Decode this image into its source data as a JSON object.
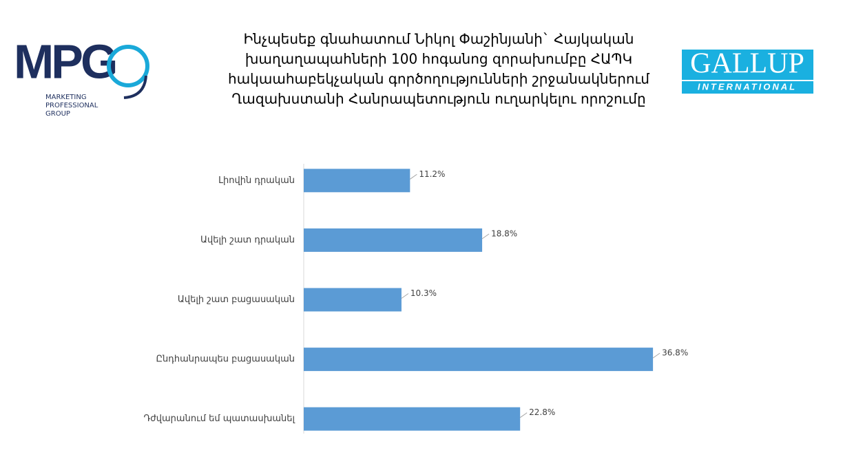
{
  "logos": {
    "left": {
      "mark": "MPG",
      "lines": [
        "MARKETING",
        "PROFESSIONAL",
        "GROUP"
      ]
    },
    "right": {
      "mark": "GALLUP",
      "sub": "INTERNATIONAL"
    }
  },
  "chart_data": {
    "type": "hbar",
    "title": [
      "Ինչպեսեք գնահատում  Նիկոլ Փաշինյանի` Հայկական",
      "խաղաղապահների 100 հոգանոց զորախումբը  ՀԱՊԿ",
      "հակաահաբեկչական գործողությունների շրջանակներում",
      "Ղազախստանի Հանրապետություն ուղարկելու որոշումը"
    ],
    "categories": [
      "Լիովին դրական",
      "Ավելի շատ դրական",
      "Ավելի շատ բացասական",
      "Ընդհանրապես բացասական",
      "Դժվարանում եմ պատասխանել"
    ],
    "values": [
      11.2,
      18.8,
      10.3,
      36.8,
      22.8
    ],
    "value_labels": [
      "11.2%",
      "18.8%",
      "10.3%",
      "36.8%",
      "22.8%"
    ],
    "color": "#5b9bd5"
  }
}
